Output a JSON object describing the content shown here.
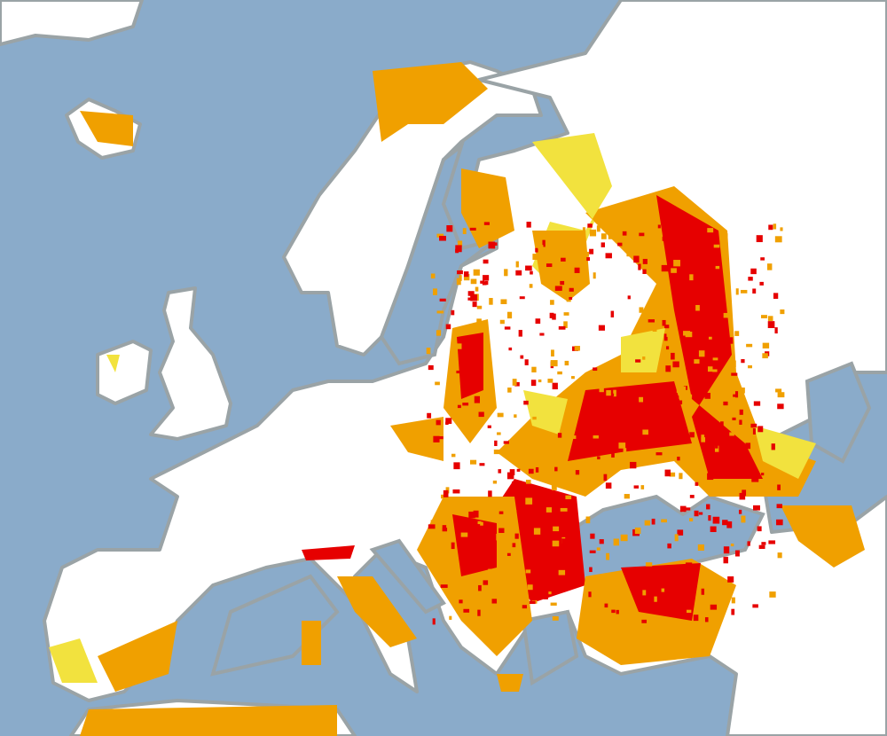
{
  "map": {
    "colors": {
      "sea": "#8aabca",
      "land": "#ffffff",
      "coast": "#9aa3a6",
      "low": "#f2e23e",
      "medium": "#f0a000",
      "high": "#e60000"
    },
    "legend_levels": [
      "low",
      "medium",
      "high"
    ]
  }
}
